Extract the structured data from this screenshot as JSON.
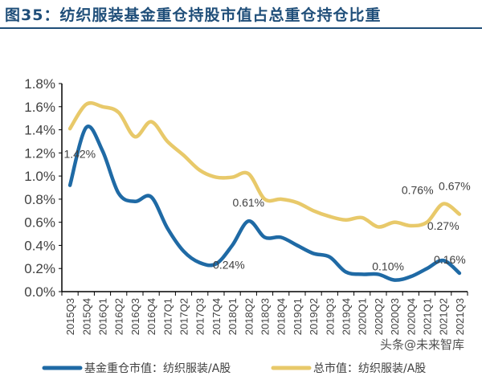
{
  "title": "图35：纺织服装基金重仓持股市值占总重仓持仓比重",
  "watermark": "头条@未来智库",
  "chart_data": {
    "type": "line",
    "title": "图35：纺织服装基金重仓持股市值占总重仓持仓比重",
    "categories": [
      "2015Q3",
      "2015Q4",
      "2016Q1",
      "2016Q2",
      "2016Q3",
      "2016Q4",
      "2017Q1",
      "2017Q2",
      "2017Q3",
      "2017Q4",
      "2018Q1",
      "2018Q2",
      "2018Q3",
      "2018Q4",
      "2019Q1",
      "2019Q2",
      "2019Q3",
      "2019Q4",
      "2020Q1",
      "2020Q2",
      "2020Q3",
      "2020Q4",
      "2021Q1",
      "2021Q2",
      "2021Q3"
    ],
    "ylim": [
      0,
      1.8
    ],
    "yticks": [
      "0.0%",
      "0.2%",
      "0.4%",
      "0.6%",
      "0.8%",
      "1.0%",
      "1.2%",
      "1.4%",
      "1.6%",
      "1.8%"
    ],
    "grid": false,
    "legend": "bottom",
    "series": [
      {
        "name": "基金重仓市值：纺织服装/A股",
        "color": "#1f6aa5",
        "values": [
          0.92,
          1.42,
          1.22,
          0.85,
          0.78,
          0.82,
          0.55,
          0.35,
          0.25,
          0.24,
          0.4,
          0.61,
          0.47,
          0.47,
          0.4,
          0.33,
          0.3,
          0.17,
          0.15,
          0.15,
          0.1,
          0.13,
          0.2,
          0.27,
          0.16
        ],
        "labels": [
          {
            "index": 1,
            "text": "1.42%"
          },
          {
            "index": 9,
            "text": "0.24%"
          },
          {
            "index": 11,
            "text": "0.61%"
          },
          {
            "index": 20,
            "text": "0.10%"
          },
          {
            "index": 23,
            "text": "0.27%"
          },
          {
            "index": 24,
            "text": "0.16%"
          }
        ]
      },
      {
        "name": "总市值：纺织服装/A股",
        "color": "#e8c96a",
        "values": [
          1.41,
          1.62,
          1.6,
          1.55,
          1.34,
          1.47,
          1.3,
          1.18,
          1.05,
          0.99,
          0.99,
          1.02,
          0.8,
          0.8,
          0.77,
          0.7,
          0.65,
          0.62,
          0.64,
          0.56,
          0.6,
          0.57,
          0.6,
          0.76,
          0.67
        ],
        "labels": [
          {
            "index": 23,
            "text": "0.76%"
          },
          {
            "index": 24,
            "text": "0.67%"
          }
        ]
      }
    ]
  }
}
